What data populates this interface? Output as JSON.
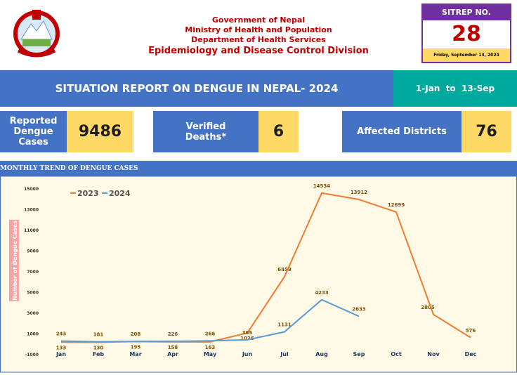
{
  "header": {
    "org": [
      "Government of Nepal",
      "Ministry of Health and Population",
      "Department of Health Services",
      "Epidemiology and Disease Control Division"
    ],
    "sitrep_label": "SITREP NO.",
    "sitrep_no": 28,
    "date": "Friday, September 13, 2024"
  },
  "banner": {
    "title": "SITUATION REPORT ON DENGUE IN NEPAL- 2024",
    "period": "1-Jan  to  13-Sep"
  },
  "stats": [
    {
      "label": "Reported Dengue Cases",
      "value": 9486
    },
    {
      "label": "Verified Deaths*",
      "value": 6
    },
    {
      "label": "Affected Districts",
      "value": 76
    }
  ],
  "chart_data": {
    "type": "line",
    "title": "MONTHLY TREND OF DENGUE CASES",
    "y_label": "Number of Dengue Cases",
    "categories": [
      "Jan",
      "Feb",
      "Mar",
      "Apr",
      "May",
      "Jun",
      "Jul",
      "Aug",
      "Sep",
      "Oct",
      "Nov",
      "Dec"
    ],
    "series": [
      {
        "name": "2023",
        "color": "#ed7d31",
        "values": [
          133,
          130,
          195,
          158,
          163,
          1026,
          6459,
          14534,
          13912,
          12699,
          2805,
          576
        ]
      },
      {
        "name": "2024",
        "color": "#5b9bd5",
        "values": [
          243,
          181,
          208,
          226,
          266,
          365,
          1131,
          4233,
          2633,
          null,
          null,
          null
        ]
      }
    ],
    "ylim": [
      -1000,
      15000
    ],
    "yticks": [
      15000,
      13000,
      11000,
      9000,
      7000,
      5000,
      3000,
      1000,
      -1000
    ],
    "legend": "top-left"
  }
}
